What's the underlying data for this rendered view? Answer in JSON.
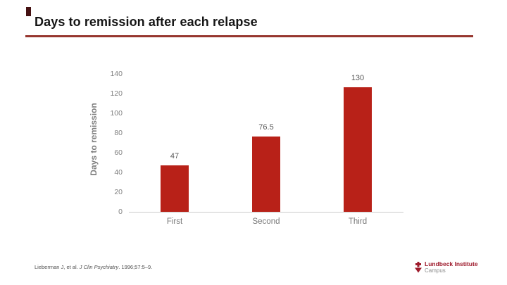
{
  "slide": {
    "title": "Days to remission after each relapse",
    "accent_color": "#97362F",
    "corner_mark_color": "#451112",
    "background_color": "#FFFFFF"
  },
  "chart_data": {
    "type": "bar",
    "title": "Days to remission after each relapse",
    "categories": [
      "First",
      "Second",
      "Third"
    ],
    "values": [
      47,
      76.5,
      130
    ],
    "xlabel": "",
    "ylabel": "Days to remission",
    "ylim": [
      0,
      140
    ],
    "yticks": [
      140,
      120,
      100,
      80,
      60,
      40,
      20,
      0
    ],
    "bar_color": "#B82118",
    "axis_line_color": "#CBCBCB",
    "label_color": "#7F7F7F",
    "grid": false,
    "legend": false,
    "data_labels": true
  },
  "footer": {
    "citation_prefix": "Lieberman J, et al. ",
    "citation_journal": "J Clin Psychiatry",
    "citation_suffix": ". 1996;57:5–9.",
    "logo": {
      "name": "Lundbeck Institute",
      "subname": "Campus",
      "icon": "lundbeck-cross-icon",
      "color": "#9E1B2C",
      "subname_color": "#8C8C8C"
    }
  }
}
